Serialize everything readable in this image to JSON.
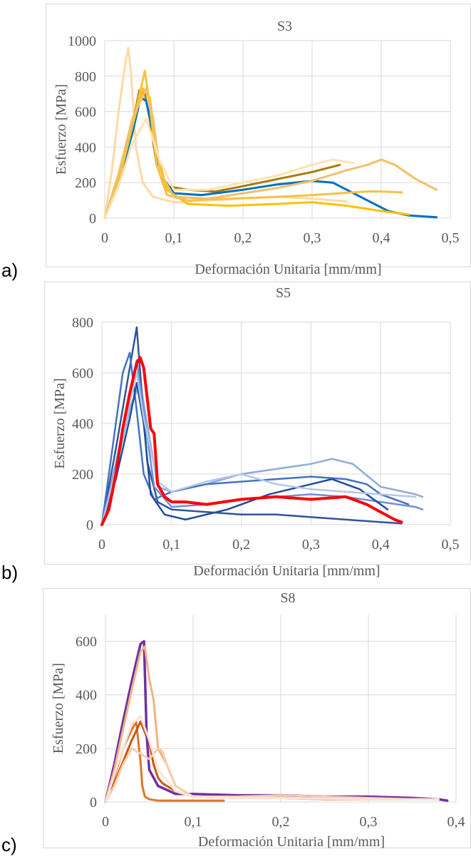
{
  "panels": [
    {
      "label": "a)"
    },
    {
      "label": "b)"
    },
    {
      "label": "c)"
    }
  ],
  "chart_data": [
    {
      "type": "line",
      "title": "S3",
      "xlabel": "Deformación Unitaria [mm/mm]",
      "ylabel": "Esfuerzo [MPa]",
      "xlim": [
        0,
        0.5
      ],
      "ylim": [
        0,
        1000
      ],
      "xticks": [
        0,
        0.1,
        0.2,
        0.3,
        0.4,
        0.5
      ],
      "yticks": [
        0,
        200,
        400,
        600,
        800,
        1000
      ],
      "xtick_labels": [
        "0",
        "0,1",
        "0,2",
        "0,3",
        "0,4",
        "0,5"
      ],
      "ytick_labels": [
        "0",
        "200",
        "400",
        "600",
        "800",
        "1000"
      ],
      "grid": true,
      "series": [
        {
          "color": "#ffd9a8",
          "width": 3,
          "x": [
            0,
            0.01,
            0.02,
            0.03,
            0.034,
            0.038,
            0.045,
            0.055,
            0.07,
            0.1,
            0.15,
            0.2,
            0.25,
            0.3,
            0.33,
            0.35
          ],
          "y": [
            0,
            260,
            600,
            880,
            960,
            820,
            400,
            200,
            120,
            90,
            100,
            110,
            120,
            110,
            100,
            95
          ]
        },
        {
          "color": "#a67c00",
          "width": 3,
          "x": [
            0,
            0.02,
            0.04,
            0.05,
            0.058,
            0.065,
            0.075,
            0.09,
            0.12,
            0.16,
            0.2,
            0.25,
            0.3,
            0.34
          ],
          "y": [
            0,
            220,
            520,
            720,
            700,
            560,
            300,
            180,
            160,
            150,
            180,
            220,
            260,
            300
          ]
        },
        {
          "color": "#0070c0",
          "width": 3,
          "x": [
            0,
            0.02,
            0.04,
            0.052,
            0.06,
            0.07,
            0.08,
            0.1,
            0.14,
            0.2,
            0.25,
            0.3,
            0.33,
            0.37,
            0.41,
            0.44,
            0.46,
            0.48
          ],
          "y": [
            0,
            200,
            480,
            680,
            660,
            480,
            250,
            140,
            130,
            160,
            190,
            210,
            200,
            120,
            40,
            15,
            10,
            5
          ]
        },
        {
          "color": "#ffc000",
          "width": 3,
          "x": [
            0,
            0.02,
            0.04,
            0.055,
            0.065,
            0.075,
            0.09,
            0.12,
            0.18,
            0.25,
            0.3,
            0.35,
            0.4,
            0.44
          ],
          "y": [
            0,
            220,
            520,
            730,
            680,
            380,
            160,
            80,
            70,
            80,
            90,
            70,
            40,
            20
          ]
        },
        {
          "color": "#f5c242",
          "width": 3,
          "x": [
            0,
            0.02,
            0.04,
            0.058,
            0.065,
            0.075,
            0.09,
            0.12,
            0.18,
            0.25,
            0.3,
            0.34,
            0.38,
            0.4,
            0.43
          ],
          "y": [
            0,
            200,
            520,
            830,
            640,
            300,
            130,
            100,
            110,
            120,
            130,
            140,
            150,
            150,
            145
          ]
        },
        {
          "color": "#f2c067",
          "width": 3,
          "x": [
            0,
            0.02,
            0.04,
            0.06,
            0.07,
            0.08,
            0.1,
            0.15,
            0.2,
            0.25,
            0.3,
            0.35,
            0.38,
            0.4,
            0.42,
            0.45,
            0.48
          ],
          "y": [
            0,
            250,
            560,
            730,
            560,
            260,
            120,
            110,
            140,
            170,
            210,
            270,
            300,
            330,
            300,
            220,
            160
          ]
        },
        {
          "color": "#fbe3b3",
          "width": 3,
          "x": [
            0,
            0.02,
            0.04,
            0.06,
            0.08,
            0.1,
            0.15,
            0.2,
            0.25,
            0.3,
            0.33,
            0.36
          ],
          "y": [
            0,
            180,
            420,
            560,
            320,
            160,
            160,
            200,
            240,
            300,
            330,
            310
          ]
        }
      ]
    },
    {
      "type": "line",
      "title": "S5",
      "xlabel": "Deformación Unitaria [mm/mm]",
      "ylabel": "Esfuerzo [MPa]",
      "xlim": [
        0,
        0.5
      ],
      "ylim": [
        0,
        800
      ],
      "xticks": [
        0,
        0.1,
        0.2,
        0.3,
        0.4,
        0.5
      ],
      "yticks": [
        0,
        200,
        400,
        600,
        800
      ],
      "xtick_labels": [
        "0",
        "0,1",
        "0,2",
        "0,3",
        "0,4",
        "0,5"
      ],
      "ytick_labels": [
        "0",
        "200",
        "400",
        "600",
        "800"
      ],
      "grid": true,
      "series": [
        {
          "color": "#8faadc",
          "width": 2.5,
          "x": [
            0,
            0.02,
            0.04,
            0.055,
            0.065,
            0.08,
            0.1,
            0.15,
            0.2,
            0.25,
            0.3,
            0.33,
            0.36,
            0.4,
            0.45,
            0.46
          ],
          "y": [
            0,
            220,
            460,
            560,
            400,
            150,
            130,
            160,
            200,
            220,
            240,
            260,
            240,
            150,
            120,
            110
          ]
        },
        {
          "color": "#2f5597",
          "width": 2.5,
          "x": [
            0,
            0.02,
            0.04,
            0.05,
            0.055,
            0.065,
            0.08,
            0.1,
            0.15,
            0.2,
            0.25,
            0.3,
            0.35,
            0.4,
            0.43
          ],
          "y": [
            0,
            300,
            620,
            780,
            600,
            250,
            90,
            60,
            50,
            40,
            40,
            30,
            20,
            10,
            5
          ]
        },
        {
          "color": "#4472c4",
          "width": 2.5,
          "x": [
            0,
            0.015,
            0.03,
            0.04,
            0.05,
            0.06,
            0.075,
            0.1,
            0.15,
            0.2,
            0.25,
            0.3,
            0.35,
            0.38,
            0.4,
            0.44
          ],
          "y": [
            0,
            300,
            600,
            680,
            450,
            200,
            100,
            130,
            160,
            170,
            180,
            190,
            180,
            160,
            120,
            80
          ]
        },
        {
          "color": "#6f8fd6",
          "width": 2.5,
          "x": [
            0,
            0.02,
            0.04,
            0.05,
            0.06,
            0.075,
            0.1,
            0.15,
            0.2,
            0.25,
            0.3,
            0.35,
            0.4,
            0.45,
            0.46
          ],
          "y": [
            0,
            240,
            520,
            650,
            450,
            150,
            70,
            80,
            100,
            110,
            120,
            110,
            90,
            70,
            60
          ]
        },
        {
          "color": "#1f4e9b",
          "width": 2.5,
          "x": [
            0,
            0.02,
            0.04,
            0.05,
            0.06,
            0.07,
            0.09,
            0.12,
            0.18,
            0.24,
            0.3,
            0.33,
            0.37,
            0.41
          ],
          "y": [
            0,
            180,
            420,
            560,
            400,
            120,
            40,
            20,
            60,
            120,
            160,
            180,
            140,
            60
          ]
        },
        {
          "color": "#b4c7e7",
          "width": 2.5,
          "x": [
            0,
            0.02,
            0.04,
            0.05,
            0.06,
            0.08,
            0.1,
            0.15,
            0.2,
            0.25,
            0.3,
            0.35,
            0.4,
            0.45
          ],
          "y": [
            0,
            220,
            480,
            600,
            420,
            170,
            130,
            170,
            200,
            160,
            140,
            130,
            120,
            110
          ]
        },
        {
          "color": "#ff0000",
          "width": 4,
          "x": [
            0,
            0.01,
            0.02,
            0.03,
            0.04,
            0.05,
            0.055,
            0.06,
            0.065,
            0.07,
            0.075,
            0.08,
            0.09,
            0.1,
            0.12,
            0.15,
            0.2,
            0.25,
            0.3,
            0.35,
            0.38,
            0.4,
            0.42,
            0.43
          ],
          "y": [
            0,
            60,
            200,
            380,
            520,
            640,
            660,
            620,
            500,
            380,
            360,
            160,
            110,
            90,
            90,
            80,
            100,
            110,
            100,
            110,
            80,
            50,
            20,
            10
          ]
        }
      ]
    },
    {
      "type": "line",
      "title": "S8",
      "xlabel": "Deformación Unitaria [mm/mm]",
      "ylabel": "Esfuerzo [MPa]",
      "xlim": [
        0,
        0.4
      ],
      "ylim": [
        0,
        700
      ],
      "xticks": [
        0,
        0.1,
        0.2,
        0.3,
        0.4
      ],
      "yticks": [
        0,
        200,
        400,
        600
      ],
      "xtick_labels": [
        "0",
        "0,1",
        "0,2",
        "0,3",
        "0,4"
      ],
      "ytick_labels": [
        "0",
        "200",
        "400",
        "600"
      ],
      "grid": true,
      "series": [
        {
          "color": "#e0752d",
          "width": 3,
          "x": [
            0,
            0.01,
            0.02,
            0.03,
            0.035,
            0.04,
            0.042,
            0.045,
            0.05,
            0.06,
            0.08,
            0.1,
            0.12,
            0.135
          ],
          "y": [
            0,
            90,
            200,
            270,
            300,
            150,
            60,
            20,
            10,
            5,
            5,
            5,
            5,
            5
          ]
        },
        {
          "color": "#c55a11",
          "width": 3,
          "x": [
            0,
            0.01,
            0.02,
            0.03,
            0.04,
            0.045,
            0.05,
            0.055,
            0.06,
            0.065,
            0.07,
            0.08,
            0.1,
            0.15,
            0.2,
            0.25,
            0.3,
            0.35
          ],
          "y": [
            0,
            70,
            150,
            230,
            300,
            260,
            220,
            140,
            90,
            70,
            60,
            40,
            20,
            15,
            15,
            10,
            10,
            10
          ]
        },
        {
          "color": "#7030a0",
          "width": 3.5,
          "x": [
            0,
            0.01,
            0.02,
            0.03,
            0.04,
            0.044,
            0.047,
            0.05,
            0.06,
            0.08,
            0.1,
            0.15,
            0.2,
            0.25,
            0.3,
            0.35,
            0.38,
            0.39
          ],
          "y": [
            0,
            140,
            300,
            450,
            590,
            600,
            250,
            120,
            60,
            30,
            30,
            25,
            25,
            20,
            20,
            15,
            10,
            5
          ]
        },
        {
          "color": "#f4b183",
          "width": 3,
          "x": [
            0,
            0.01,
            0.02,
            0.03,
            0.04,
            0.045,
            0.05,
            0.055,
            0.06,
            0.07,
            0.08,
            0.1,
            0.15,
            0.2,
            0.25,
            0.3,
            0.35,
            0.38
          ],
          "y": [
            0,
            120,
            270,
            420,
            560,
            580,
            460,
            380,
            200,
            140,
            60,
            20,
            15,
            15,
            10,
            10,
            10,
            10
          ]
        },
        {
          "color": "#f8cbad",
          "width": 3,
          "x": [
            0,
            0.01,
            0.02,
            0.03,
            0.04,
            0.05,
            0.06,
            0.065,
            0.07,
            0.08,
            0.1,
            0.15,
            0.2,
            0.25,
            0.3,
            0.35,
            0.38
          ],
          "y": [
            0,
            60,
            140,
            200,
            180,
            160,
            200,
            190,
            140,
            60,
            20,
            20,
            25,
            20,
            15,
            10,
            10
          ]
        },
        {
          "color": "#fbe5d6",
          "width": 3,
          "x": [
            0,
            0.01,
            0.02,
            0.03,
            0.04,
            0.05,
            0.06,
            0.08,
            0.1,
            0.15,
            0.2,
            0.3,
            0.38
          ],
          "y": [
            0,
            100,
            200,
            290,
            320,
            230,
            120,
            40,
            20,
            15,
            15,
            10,
            10
          ]
        }
      ]
    }
  ]
}
